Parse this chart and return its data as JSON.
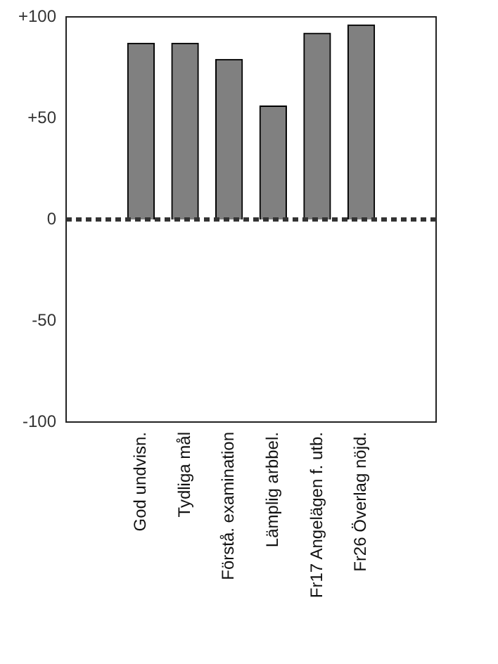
{
  "chart_data": {
    "type": "bar",
    "categories": [
      "God undvisn.",
      "Tydliga mål",
      "Förstå. examination",
      "Lämplig arbbel.",
      "Fr17 Angelägen f. utb.",
      "Fr26 Överlag nöjd."
    ],
    "values": [
      87,
      87,
      79,
      56,
      92,
      96
    ],
    "color": "#808080",
    "ylim": [
      -100,
      100
    ],
    "yticks": [
      {
        "value": -100,
        "label": "-100"
      },
      {
        "value": -50,
        "label": "-50"
      },
      {
        "value": 0,
        "label": "0"
      },
      {
        "value": 50,
        "label": "+50"
      },
      {
        "value": 100,
        "label": "+100"
      }
    ],
    "grid": false,
    "legend": false,
    "ref_lines": [
      {
        "axis": "y",
        "value": 0,
        "color": "#333333",
        "line_style": "dotted"
      }
    ]
  }
}
